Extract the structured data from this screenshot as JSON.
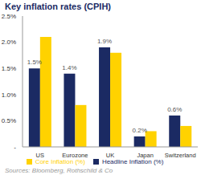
{
  "chart_data": {
    "type": "bar",
    "title": "Key inflation rates (CPIH)",
    "source": "Sources: Bloomberg, Rothschild & Co",
    "categories": [
      "US",
      "Eurozone",
      "UK",
      "Japan",
      "Switzerland"
    ],
    "series": [
      {
        "name": "Headline Inflation (%)",
        "color": "#1b2a63",
        "values": [
          1.5,
          1.4,
          1.9,
          0.2,
          0.6
        ],
        "data_labels": true,
        "value_labels": [
          "1.5%",
          "1.4%",
          "1.9%",
          "0.2%",
          "0.6%"
        ]
      },
      {
        "name": "Core Inflation (%)",
        "color": "#ffd200",
        "values": [
          2.1,
          0.8,
          1.8,
          0.3,
          0.4
        ]
      }
    ],
    "ylim": [
      0,
      2.5
    ],
    "yticks": [
      {
        "value": 0,
        "label": "-"
      },
      {
        "value": 0.5,
        "label": "0.5%"
      },
      {
        "value": 1,
        "label": "1.0%"
      },
      {
        "value": 1.5,
        "label": "1.5%"
      },
      {
        "value": 2,
        "label": "2.0%"
      },
      {
        "value": 2.5,
        "label": "2.5%"
      }
    ],
    "grid": false,
    "legend": "bottom"
  }
}
